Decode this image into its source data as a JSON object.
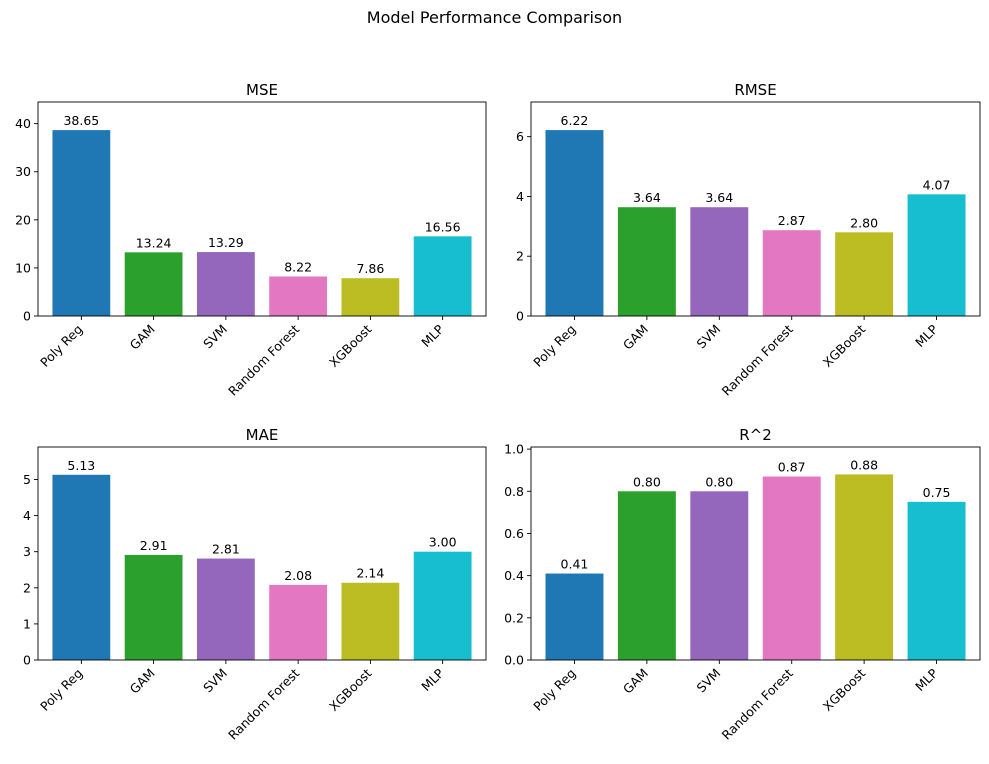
{
  "suptitle": "Model Performance Comparison",
  "colors": [
    "#1f77b4",
    "#2ca02c",
    "#9467bd",
    "#e377c2",
    "#bcbd22",
    "#17becf"
  ],
  "chart_data": [
    {
      "type": "bar",
      "title": "MSE",
      "xlabel": "",
      "ylabel": "",
      "categories": [
        "Poly Reg",
        "GAM",
        "SVM",
        "Random Forest",
        "XGBoost",
        "MLP"
      ],
      "values": [
        38.65,
        13.24,
        13.29,
        8.22,
        7.86,
        16.56
      ],
      "data_labels": [
        "38.65",
        "13.24",
        "13.29",
        "8.22",
        "7.86",
        "16.56"
      ],
      "ylim": [
        0,
        44.5
      ],
      "yticks": [
        0,
        10,
        20,
        30,
        40
      ],
      "ytick_labels": [
        "0",
        "10",
        "20",
        "30",
        "40"
      ],
      "grid": false
    },
    {
      "type": "bar",
      "title": "RMSE",
      "xlabel": "",
      "ylabel": "",
      "categories": [
        "Poly Reg",
        "GAM",
        "SVM",
        "Random Forest",
        "XGBoost",
        "MLP"
      ],
      "values": [
        6.22,
        3.64,
        3.64,
        2.87,
        2.8,
        4.07
      ],
      "data_labels": [
        "6.22",
        "3.64",
        "3.64",
        "2.87",
        "2.80",
        "4.07"
      ],
      "ylim": [
        0,
        7.16
      ],
      "yticks": [
        0,
        2,
        4,
        6
      ],
      "ytick_labels": [
        "0",
        "2",
        "4",
        "6"
      ],
      "grid": false
    },
    {
      "type": "bar",
      "title": "MAE",
      "xlabel": "",
      "ylabel": "",
      "categories": [
        "Poly Reg",
        "GAM",
        "SVM",
        "Random Forest",
        "XGBoost",
        "MLP"
      ],
      "values": [
        5.13,
        2.91,
        2.81,
        2.08,
        2.14,
        3.0
      ],
      "data_labels": [
        "5.13",
        "2.91",
        "2.81",
        "2.08",
        "2.14",
        "3.00"
      ],
      "ylim": [
        0,
        5.9
      ],
      "yticks": [
        0,
        1,
        2,
        3,
        4,
        5
      ],
      "ytick_labels": [
        "0",
        "1",
        "2",
        "3",
        "4",
        "5"
      ],
      "grid": false
    },
    {
      "type": "bar",
      "title": "R^2",
      "xlabel": "",
      "ylabel": "",
      "categories": [
        "Poly Reg",
        "GAM",
        "SVM",
        "Random Forest",
        "XGBoost",
        "MLP"
      ],
      "values": [
        0.41,
        0.8,
        0.8,
        0.87,
        0.88,
        0.75
      ],
      "data_labels": [
        "0.41",
        "0.80",
        "0.80",
        "0.87",
        "0.88",
        "0.75"
      ],
      "ylim": [
        0,
        1.01
      ],
      "yticks": [
        0.0,
        0.2,
        0.4,
        0.6,
        0.8,
        1.0
      ],
      "ytick_labels": [
        "0.0",
        "0.2",
        "0.4",
        "0.6",
        "0.8",
        "1.0"
      ],
      "grid": false
    }
  ]
}
